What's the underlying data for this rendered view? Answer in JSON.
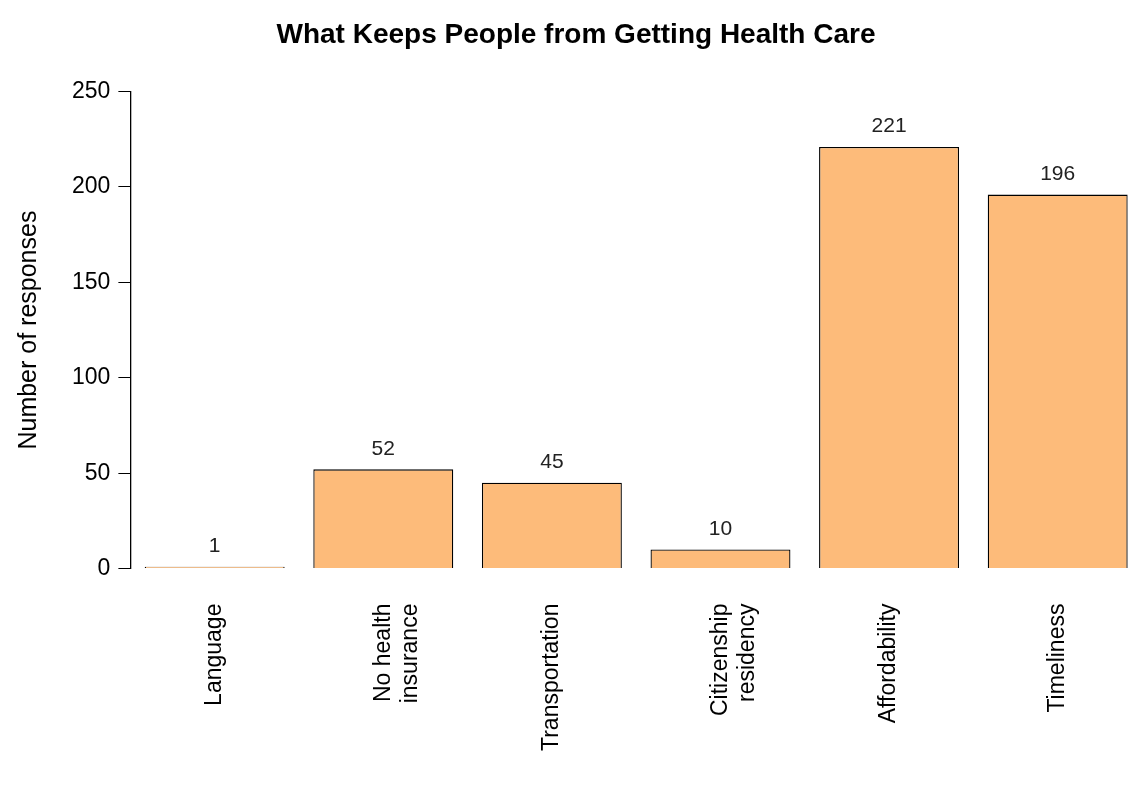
{
  "chart_data": {
    "type": "bar",
    "title": "What Keeps People from Getting Health Care",
    "ylabel": "Number of responses",
    "categories": [
      "Language",
      "No health\ninsurance",
      "Transportation",
      "Citizenship\nresidency",
      "Affordability",
      "Timeliness"
    ],
    "values": [
      1,
      52,
      45,
      10,
      221,
      196
    ],
    "color": "#fdbb7a",
    "ylim": [
      0,
      250
    ],
    "yticks": [
      0,
      50,
      100,
      150,
      200,
      250
    ],
    "grid": false,
    "legend": false,
    "data_labels": true
  }
}
